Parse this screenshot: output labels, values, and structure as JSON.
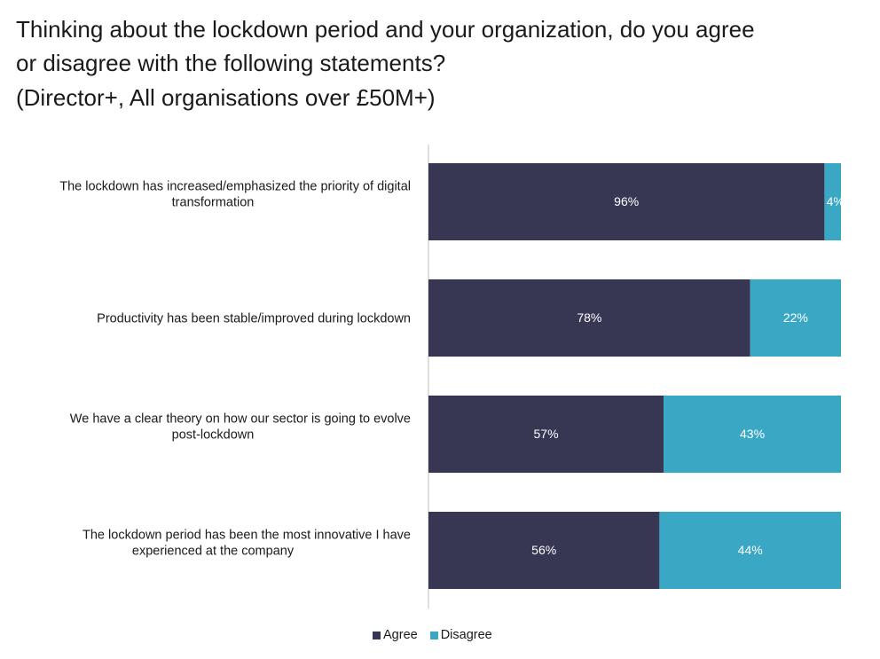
{
  "title": {
    "line1": "Thinking about the lockdown period and your organization, do you agree",
    "line2": "or disagree with the following statements?",
    "subtitle": "(Director+, All organisations over £50M+)"
  },
  "legend": {
    "agree": "Agree",
    "disagree": "Disagree"
  },
  "colors": {
    "agree": "#373754",
    "disagree": "#3aa7c5"
  },
  "chart_data": {
    "type": "bar",
    "orientation": "horizontal",
    "stacked": true,
    "categories": [
      [
        "The lockdown has increased/emphasized the priority of digital",
        "transformation"
      ],
      [
        "Productivity has been stable/improved during lockdown"
      ],
      [
        "We have a clear theory on how our sector is going to evolve",
        "post-lockdown"
      ],
      [
        "The lockdown period has been the most innovative I have",
        "experienced at the company"
      ]
    ],
    "series": [
      {
        "name": "Agree",
        "values": [
          96,
          78,
          57,
          56
        ],
        "labels": [
          "96%",
          "78%",
          "57%",
          "56%"
        ]
      },
      {
        "name": "Disagree",
        "values": [
          4,
          22,
          43,
          44
        ],
        "labels": [
          "4%",
          "22%",
          "43%",
          "44%"
        ]
      }
    ],
    "xlim": [
      0,
      100
    ],
    "legend_position": "bottom",
    "grid": false
  }
}
